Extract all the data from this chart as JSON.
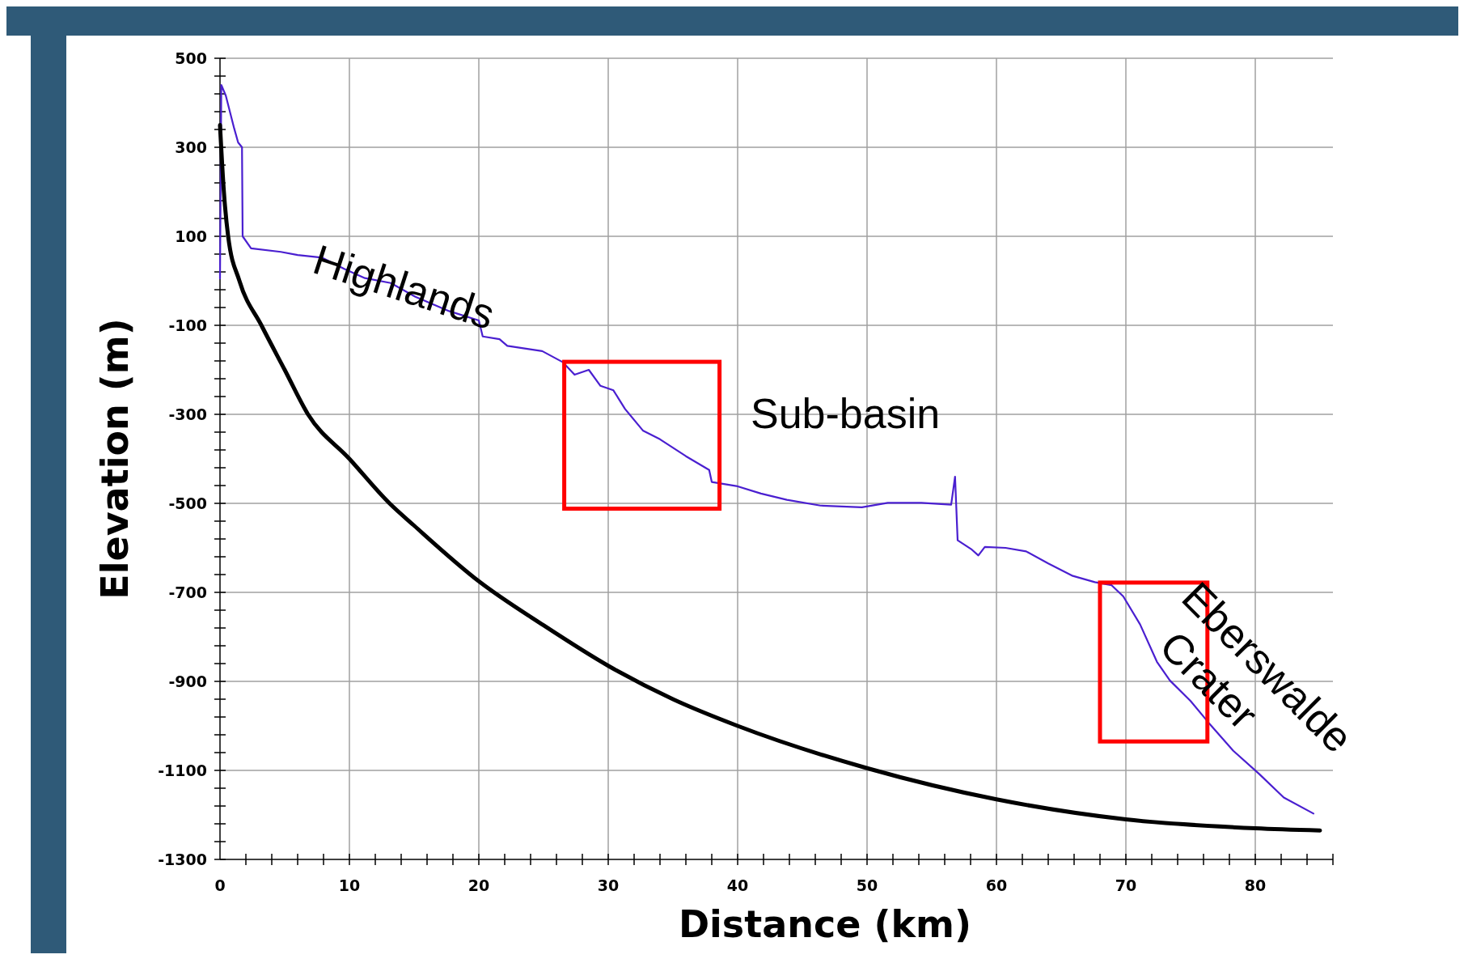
{
  "chart_data": {
    "type": "line",
    "xlabel": "Distance (km)",
    "ylabel": "Elevation (m)",
    "xlim": [
      0,
      86
    ],
    "ylim": [
      -1300,
      500
    ],
    "xticks": [
      0,
      {
        "value": 2,
        "label": null
      },
      {
        "value": 4,
        "label": null
      },
      {
        "value": 6,
        "label": null
      },
      {
        "value": 8,
        "label": null
      },
      10,
      {
        "value": 12,
        "label": null
      },
      {
        "value": 14,
        "label": null
      },
      {
        "value": 16,
        "label": null
      },
      {
        "value": 18,
        "label": null
      },
      20,
      {
        "value": 22,
        "label": null
      },
      {
        "value": 24,
        "label": null
      },
      {
        "value": 26,
        "label": null
      },
      {
        "value": 28,
        "label": null
      },
      30,
      {
        "value": 32,
        "label": null
      },
      {
        "value": 34,
        "label": null
      },
      {
        "value": 36,
        "label": null
      },
      {
        "value": 38,
        "label": null
      },
      40,
      {
        "value": 42,
        "label": null
      },
      {
        "value": 44,
        "label": null
      },
      {
        "value": 46,
        "label": null
      },
      {
        "value": 48,
        "label": null
      },
      50,
      {
        "value": 52,
        "label": null
      },
      {
        "value": 54,
        "label": null
      },
      {
        "value": 56,
        "label": null
      },
      {
        "value": 58,
        "label": null
      },
      60,
      {
        "value": 62,
        "label": null
      },
      {
        "value": 64,
        "label": null
      },
      {
        "value": 66,
        "label": null
      },
      {
        "value": 68,
        "label": null
      },
      70,
      {
        "value": 72,
        "label": null
      },
      {
        "value": 74,
        "label": null
      },
      {
        "value": 76,
        "label": null
      },
      {
        "value": 78,
        "label": null
      },
      80,
      {
        "value": 82,
        "label": null
      },
      {
        "value": 84,
        "label": null
      },
      {
        "value": 86,
        "label": null
      }
    ],
    "yticks": [
      500,
      {
        "value": 460,
        "label": null
      },
      {
        "value": 420,
        "label": null
      },
      {
        "value": 380,
        "label": null
      },
      {
        "value": 340,
        "label": null
      },
      300,
      {
        "value": 260,
        "label": null
      },
      {
        "value": 220,
        "label": null
      },
      {
        "value": 180,
        "label": null
      },
      {
        "value": 140,
        "label": null
      },
      100,
      {
        "value": 60,
        "label": null
      },
      {
        "value": 20,
        "label": null
      },
      {
        "value": -20,
        "label": null
      },
      {
        "value": -60,
        "label": null
      },
      -100,
      {
        "value": -140,
        "label": null
      },
      {
        "value": -180,
        "label": null
      },
      {
        "value": -220,
        "label": null
      },
      {
        "value": -260,
        "label": null
      },
      -300,
      {
        "value": -340,
        "label": null
      },
      {
        "value": -380,
        "label": null
      },
      {
        "value": -420,
        "label": null
      },
      {
        "value": -460,
        "label": null
      },
      -500,
      {
        "value": -540,
        "label": null
      },
      {
        "value": -580,
        "label": null
      },
      {
        "value": -620,
        "label": null
      },
      {
        "value": -660,
        "label": null
      },
      -700,
      {
        "value": -740,
        "label": null
      },
      {
        "value": -780,
        "label": null
      },
      {
        "value": -820,
        "label": null
      },
      {
        "value": -860,
        "label": null
      },
      -900,
      {
        "value": -940,
        "label": null
      },
      {
        "value": -980,
        "label": null
      },
      {
        "value": -1020,
        "label": null
      },
      {
        "value": -1060,
        "label": null
      },
      -1100,
      {
        "value": -1140,
        "label": null
      },
      {
        "value": -1180,
        "label": null
      },
      {
        "value": -1220,
        "label": null
      },
      {
        "value": -1260,
        "label": null
      },
      -1300
    ],
    "grid": true,
    "line_style": "solid",
    "series": [
      {
        "color": "#4a1fd0",
        "x": [
          0,
          0.1,
          0.45,
          1.1,
          1.4,
          1.7,
          1.75,
          2.4,
          4.7,
          6.0,
          7.9,
          9.6,
          11.2,
          13.2,
          15.1,
          17.7,
          20,
          20.3,
          21.6,
          22.2,
          24.9,
          26.5,
          27.4,
          28.5,
          29.4,
          30.4,
          31.3,
          32.7,
          34.0,
          36.0,
          37.8,
          38.0,
          39.9,
          41.8,
          43.8,
          46.4,
          49.6,
          51.6,
          54.2,
          56.5,
          56.8,
          57.0,
          58.1,
          58.6,
          59.1,
          60.7,
          62.3,
          64.0,
          65.9,
          67.6,
          68.9,
          69.8,
          71.1,
          72.4,
          73.4,
          75.0,
          76.4,
          78.3,
          80.3,
          82.2,
          84.5
        ],
        "values": [
          5,
          440,
          416,
          342,
          311,
          300,
          100,
          73,
          65,
          58,
          52,
          27,
          6,
          -5,
          -36,
          -68,
          -89,
          -125,
          -131,
          -146,
          -158,
          -183,
          -211,
          -200,
          -236,
          -246,
          -288,
          -337,
          -356,
          -394,
          -425,
          -452,
          -461,
          -478,
          -492,
          -505,
          -509,
          -499,
          -499,
          -503,
          -440,
          -583,
          -604,
          -617,
          -598,
          -600,
          -608,
          -635,
          -663,
          -677,
          -684,
          -709,
          -772,
          -856,
          -898,
          -944,
          -993,
          -1056,
          -1108,
          -1161,
          -1197
        ]
      },
      {
        "color": "#000000",
        "x": [
          0,
          0.3,
          0.63,
          1.5,
          3.2,
          5,
          6.8,
          10,
          13.1,
          15,
          20,
          25,
          30,
          35,
          40,
          50,
          60,
          70,
          80,
          85
        ],
        "values": [
          350,
          200,
          100,
          0,
          -100,
          -200,
          -300,
          -400,
          -500,
          -550,
          -675,
          -774,
          -865,
          -940,
          -1000,
          -1095,
          -1165,
          -1210,
          -1230,
          -1235
        ]
      }
    ],
    "annotations": [
      "Highlands",
      "Sub-basin",
      "Eberswalde Crater"
    ]
  }
}
